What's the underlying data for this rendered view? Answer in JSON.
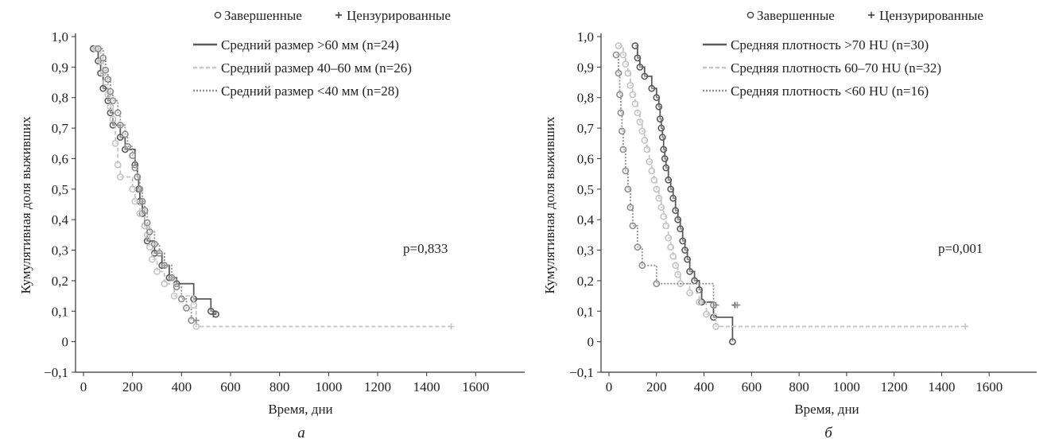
{
  "chart_data": [
    {
      "type": "line",
      "subtype": "kaplan-meier",
      "panel_label": "а",
      "xlabel": "Время, дни",
      "ylabel": "Кумулятивная доля выживших",
      "xlim": [
        0,
        1600
      ],
      "ylim": [
        -0.1,
        1.0
      ],
      "xticks": [
        0,
        200,
        400,
        600,
        800,
        1000,
        1200,
        1400,
        1600
      ],
      "xtick_labels": [
        "0",
        "200",
        "400",
        "600",
        "800",
        "1000",
        "1200",
        "1400",
        "1600"
      ],
      "yticks": [
        -0.1,
        0,
        0.1,
        0.2,
        0.3,
        0.4,
        0.5,
        0.6,
        0.7,
        0.8,
        0.9,
        1.0
      ],
      "ytick_labels": [
        "−0,1",
        "0",
        "0,1",
        "0,2",
        "0,3",
        "0,4",
        "0,5",
        "0,6",
        "0,7",
        "0,8",
        "0,9",
        "1,0"
      ],
      "marker_legend": {
        "completed": "Завершенные",
        "censored": "Цензурированные"
      },
      "legend_position": "top-right",
      "annotation": "p=0,833",
      "series": [
        {
          "name": "Средний размер >60 мм (n=24)",
          "color": "#5a5a5a",
          "dash": "solid",
          "points": [
            [
              40,
              0.96
            ],
            [
              60,
              0.92
            ],
            [
              70,
              0.88
            ],
            [
              80,
              0.83
            ],
            [
              100,
              0.79
            ],
            [
              110,
              0.75
            ],
            [
              120,
              0.71
            ],
            [
              150,
              0.67
            ],
            [
              170,
              0.63
            ],
            [
              210,
              0.58
            ],
            [
              220,
              0.54
            ],
            [
              225,
              0.5
            ],
            [
              230,
              0.46
            ],
            [
              240,
              0.42
            ],
            [
              250,
              0.38
            ],
            [
              260,
              0.33
            ],
            [
              290,
              0.29
            ],
            [
              320,
              0.25
            ],
            [
              350,
              0.21
            ],
            [
              380,
              0.19
            ],
            [
              450,
              0.14
            ],
            [
              520,
              0.1
            ],
            [
              540,
              0.09
            ]
          ],
          "censored": [
            [
              530,
              0.09
            ]
          ]
        },
        {
          "name": "Средний размер 40–60 мм (n=26)",
          "color": "#c4c4c4",
          "dash": "dashed",
          "points": [
            [
              50,
              0.96
            ],
            [
              70,
              0.92
            ],
            [
              80,
              0.88
            ],
            [
              90,
              0.85
            ],
            [
              100,
              0.81
            ],
            [
              110,
              0.77
            ],
            [
              120,
              0.73
            ],
            [
              130,
              0.65
            ],
            [
              140,
              0.58
            ],
            [
              150,
              0.54
            ],
            [
              200,
              0.5
            ],
            [
              210,
              0.46
            ],
            [
              230,
              0.42
            ],
            [
              250,
              0.38
            ],
            [
              260,
              0.35
            ],
            [
              270,
              0.31
            ],
            [
              280,
              0.27
            ],
            [
              300,
              0.23
            ],
            [
              330,
              0.19
            ],
            [
              370,
              0.15
            ],
            [
              450,
              0.12
            ],
            [
              460,
              0.05
            ],
            [
              1500,
              0.05
            ]
          ],
          "censored": [
            [
              1500,
              0.05
            ]
          ]
        },
        {
          "name": "Средний размер <40 мм (n=28)",
          "color": "#8e8e8e",
          "dash": "dotted",
          "points": [
            [
              60,
              0.96
            ],
            [
              80,
              0.93
            ],
            [
              90,
              0.89
            ],
            [
              100,
              0.86
            ],
            [
              110,
              0.82
            ],
            [
              120,
              0.79
            ],
            [
              140,
              0.75
            ],
            [
              150,
              0.71
            ],
            [
              170,
              0.68
            ],
            [
              180,
              0.64
            ],
            [
              200,
              0.61
            ],
            [
              210,
              0.57
            ],
            [
              220,
              0.54
            ],
            [
              230,
              0.5
            ],
            [
              240,
              0.46
            ],
            [
              250,
              0.43
            ],
            [
              260,
              0.39
            ],
            [
              270,
              0.36
            ],
            [
              290,
              0.32
            ],
            [
              310,
              0.29
            ],
            [
              330,
              0.25
            ],
            [
              360,
              0.21
            ],
            [
              380,
              0.18
            ],
            [
              400,
              0.14
            ],
            [
              420,
              0.11
            ],
            [
              440,
              0.07
            ]
          ],
          "censored": [
            [
              460,
              0.07
            ]
          ]
        }
      ]
    },
    {
      "type": "line",
      "subtype": "kaplan-meier",
      "panel_label": "б",
      "xlabel": "Время, дни",
      "ylabel": "Кумулятивная доля выживших",
      "xlim": [
        0,
        1600
      ],
      "ylim": [
        -0.1,
        1.0
      ],
      "xticks": [
        0,
        200,
        400,
        600,
        800,
        1000,
        1200,
        1400,
        1600
      ],
      "xtick_labels": [
        "0",
        "200",
        "400",
        "600",
        "800",
        "1000",
        "1200",
        "1400",
        "1600"
      ],
      "yticks": [
        -0.1,
        0,
        0.1,
        0.2,
        0.3,
        0.4,
        0.5,
        0.6,
        0.7,
        0.8,
        0.9,
        1.0
      ],
      "ytick_labels": [
        "−0,1",
        "0",
        "0,1",
        "0,2",
        "0,3",
        "0,4",
        "0,5",
        "0,6",
        "0,7",
        "0,8",
        "0,9",
        "1,0"
      ],
      "marker_legend": {
        "completed": "Завершенные",
        "censored": "Цензурированные"
      },
      "legend_position": "top-right",
      "annotation": "p=0,001",
      "series": [
        {
          "name": "Средняя плотность >70 HU (n=30)",
          "color": "#5a5a5a",
          "dash": "solid",
          "points": [
            [
              110,
              0.97
            ],
            [
              120,
              0.93
            ],
            [
              130,
              0.9
            ],
            [
              150,
              0.87
            ],
            [
              180,
              0.83
            ],
            [
              200,
              0.8
            ],
            [
              210,
              0.77
            ],
            [
              215,
              0.73
            ],
            [
              220,
              0.7
            ],
            [
              225,
              0.67
            ],
            [
              230,
              0.63
            ],
            [
              235,
              0.6
            ],
            [
              240,
              0.57
            ],
            [
              250,
              0.53
            ],
            [
              260,
              0.5
            ],
            [
              270,
              0.47
            ],
            [
              280,
              0.43
            ],
            [
              290,
              0.4
            ],
            [
              300,
              0.37
            ],
            [
              310,
              0.33
            ],
            [
              320,
              0.3
            ],
            [
              330,
              0.27
            ],
            [
              340,
              0.23
            ],
            [
              360,
              0.2
            ],
            [
              380,
              0.17
            ],
            [
              390,
              0.13
            ],
            [
              440,
              0.08
            ],
            [
              520,
              0.0
            ]
          ],
          "censored": [
            [
              530,
              0.12
            ]
          ]
        },
        {
          "name": "Средняя плотность 60–70 HU (n=32)",
          "color": "#c4c4c4",
          "dash": "dashed",
          "points": [
            [
              40,
              0.97
            ],
            [
              60,
              0.94
            ],
            [
              70,
              0.91
            ],
            [
              80,
              0.88
            ],
            [
              90,
              0.84
            ],
            [
              100,
              0.81
            ],
            [
              110,
              0.78
            ],
            [
              120,
              0.75
            ],
            [
              130,
              0.72
            ],
            [
              140,
              0.69
            ],
            [
              150,
              0.66
            ],
            [
              160,
              0.63
            ],
            [
              170,
              0.59
            ],
            [
              180,
              0.56
            ],
            [
              190,
              0.53
            ],
            [
              200,
              0.5
            ],
            [
              210,
              0.47
            ],
            [
              220,
              0.44
            ],
            [
              230,
              0.41
            ],
            [
              240,
              0.38
            ],
            [
              250,
              0.34
            ],
            [
              260,
              0.31
            ],
            [
              270,
              0.28
            ],
            [
              280,
              0.25
            ],
            [
              290,
              0.22
            ],
            [
              300,
              0.19
            ],
            [
              340,
              0.16
            ],
            [
              380,
              0.13
            ],
            [
              410,
              0.09
            ],
            [
              450,
              0.05
            ],
            [
              1500,
              0.05
            ]
          ],
          "censored": [
            [
              1500,
              0.05
            ]
          ]
        },
        {
          "name": "Средняя плотность <60 HU (n=16)",
          "color": "#8e8e8e",
          "dash": "dotted",
          "points": [
            [
              30,
              0.94
            ],
            [
              40,
              0.88
            ],
            [
              45,
              0.81
            ],
            [
              50,
              0.75
            ],
            [
              55,
              0.69
            ],
            [
              60,
              0.63
            ],
            [
              70,
              0.56
            ],
            [
              80,
              0.5
            ],
            [
              90,
              0.44
            ],
            [
              100,
              0.38
            ],
            [
              120,
              0.31
            ],
            [
              140,
              0.25
            ],
            [
              200,
              0.19
            ],
            [
              440,
              0.12
            ]
          ],
          "censored": [
            [
              450,
              0.12
            ],
            [
              540,
              0.12
            ]
          ]
        }
      ]
    }
  ]
}
